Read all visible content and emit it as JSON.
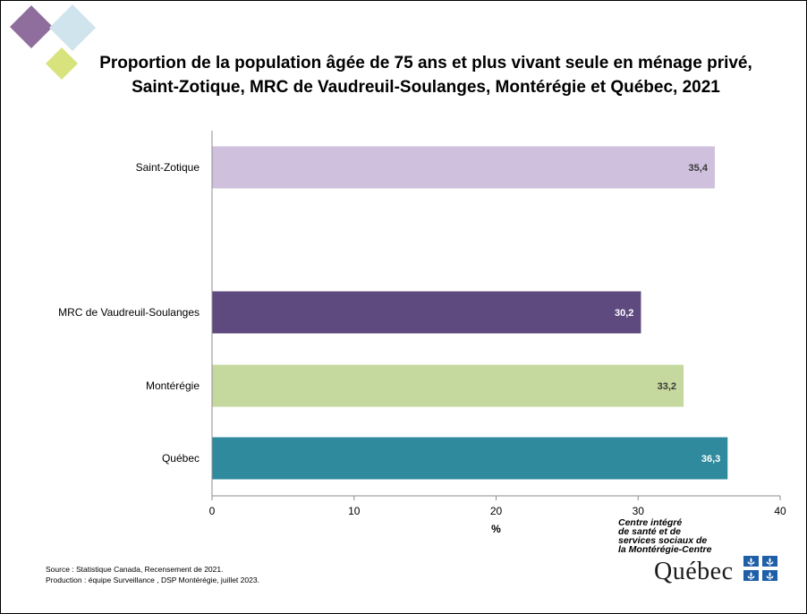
{
  "title_line1": "Proportion de la population âgée de 75 ans et plus vivant seule en ménage privé,",
  "title_line2": "Saint-Zotique, MRC de Vaudreuil-Soulanges, Montérégie et Québec, 2021",
  "colors": {
    "diamond_purple": "#8f6d9c",
    "diamond_blue": "#cfe4ec",
    "diamond_green": "#d9e37d",
    "axis": "#8c8c8c",
    "brand_blue": "#1f5fa8"
  },
  "chart_data": {
    "type": "bar",
    "orientation": "horizontal",
    "categories": [
      "Saint-Zotique",
      "MRC de Vaudreuil-Soulanges",
      "Montérégie",
      "Québec"
    ],
    "values": [
      35.4,
      30.2,
      33.2,
      36.3
    ],
    "value_labels": [
      "35,4",
      "30,2",
      "33,2",
      "36,3"
    ],
    "bar_colors": [
      "#cfc0dd",
      "#5f4a7f",
      "#c5d89e",
      "#2f8a9d"
    ],
    "label_colors": [
      "#3a3a3a",
      "#ffffff",
      "#3a3a3a",
      "#ffffff"
    ],
    "xlabel": "%",
    "xlim": [
      0,
      40
    ],
    "xticks": [
      0,
      10,
      20,
      30,
      40
    ],
    "grid": false
  },
  "source_line1": "Source : Statistique Canada, Recensement de 2021.",
  "source_line2": "Production : équipe Surveillance , DSP Montérégie, juillet 2023.",
  "logo": {
    "line1": "Centre intégré",
    "line2": "de santé et de",
    "line3": "services sociaux de",
    "line4": "la Montérégie-Centre",
    "brand": "Québec",
    "flag_icon": "fleur-de-lis-flag-icon"
  }
}
